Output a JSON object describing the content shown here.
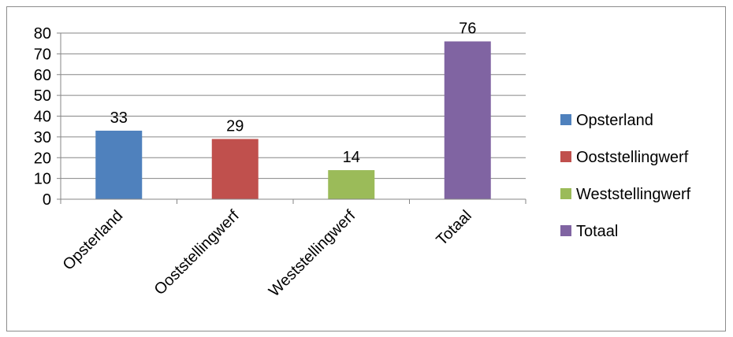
{
  "chart_data": {
    "type": "bar",
    "categories": [
      "Opsterland",
      "Ooststellingwerf",
      "Weststellingwerf",
      "Totaal"
    ],
    "values": [
      33,
      29,
      14,
      76
    ],
    "colors": [
      "#4f81bd",
      "#c0504d",
      "#9bbb59",
      "#8064a2"
    ],
    "ylim": [
      0,
      80
    ],
    "yticks": [
      0,
      10,
      20,
      30,
      40,
      50,
      60,
      70,
      80
    ],
    "grid": true,
    "legend": {
      "position": "right",
      "entries": [
        "Opsterland",
        "Ooststellingwerf",
        "Weststellingwerf",
        "Totaal"
      ]
    },
    "data_labels": true
  }
}
